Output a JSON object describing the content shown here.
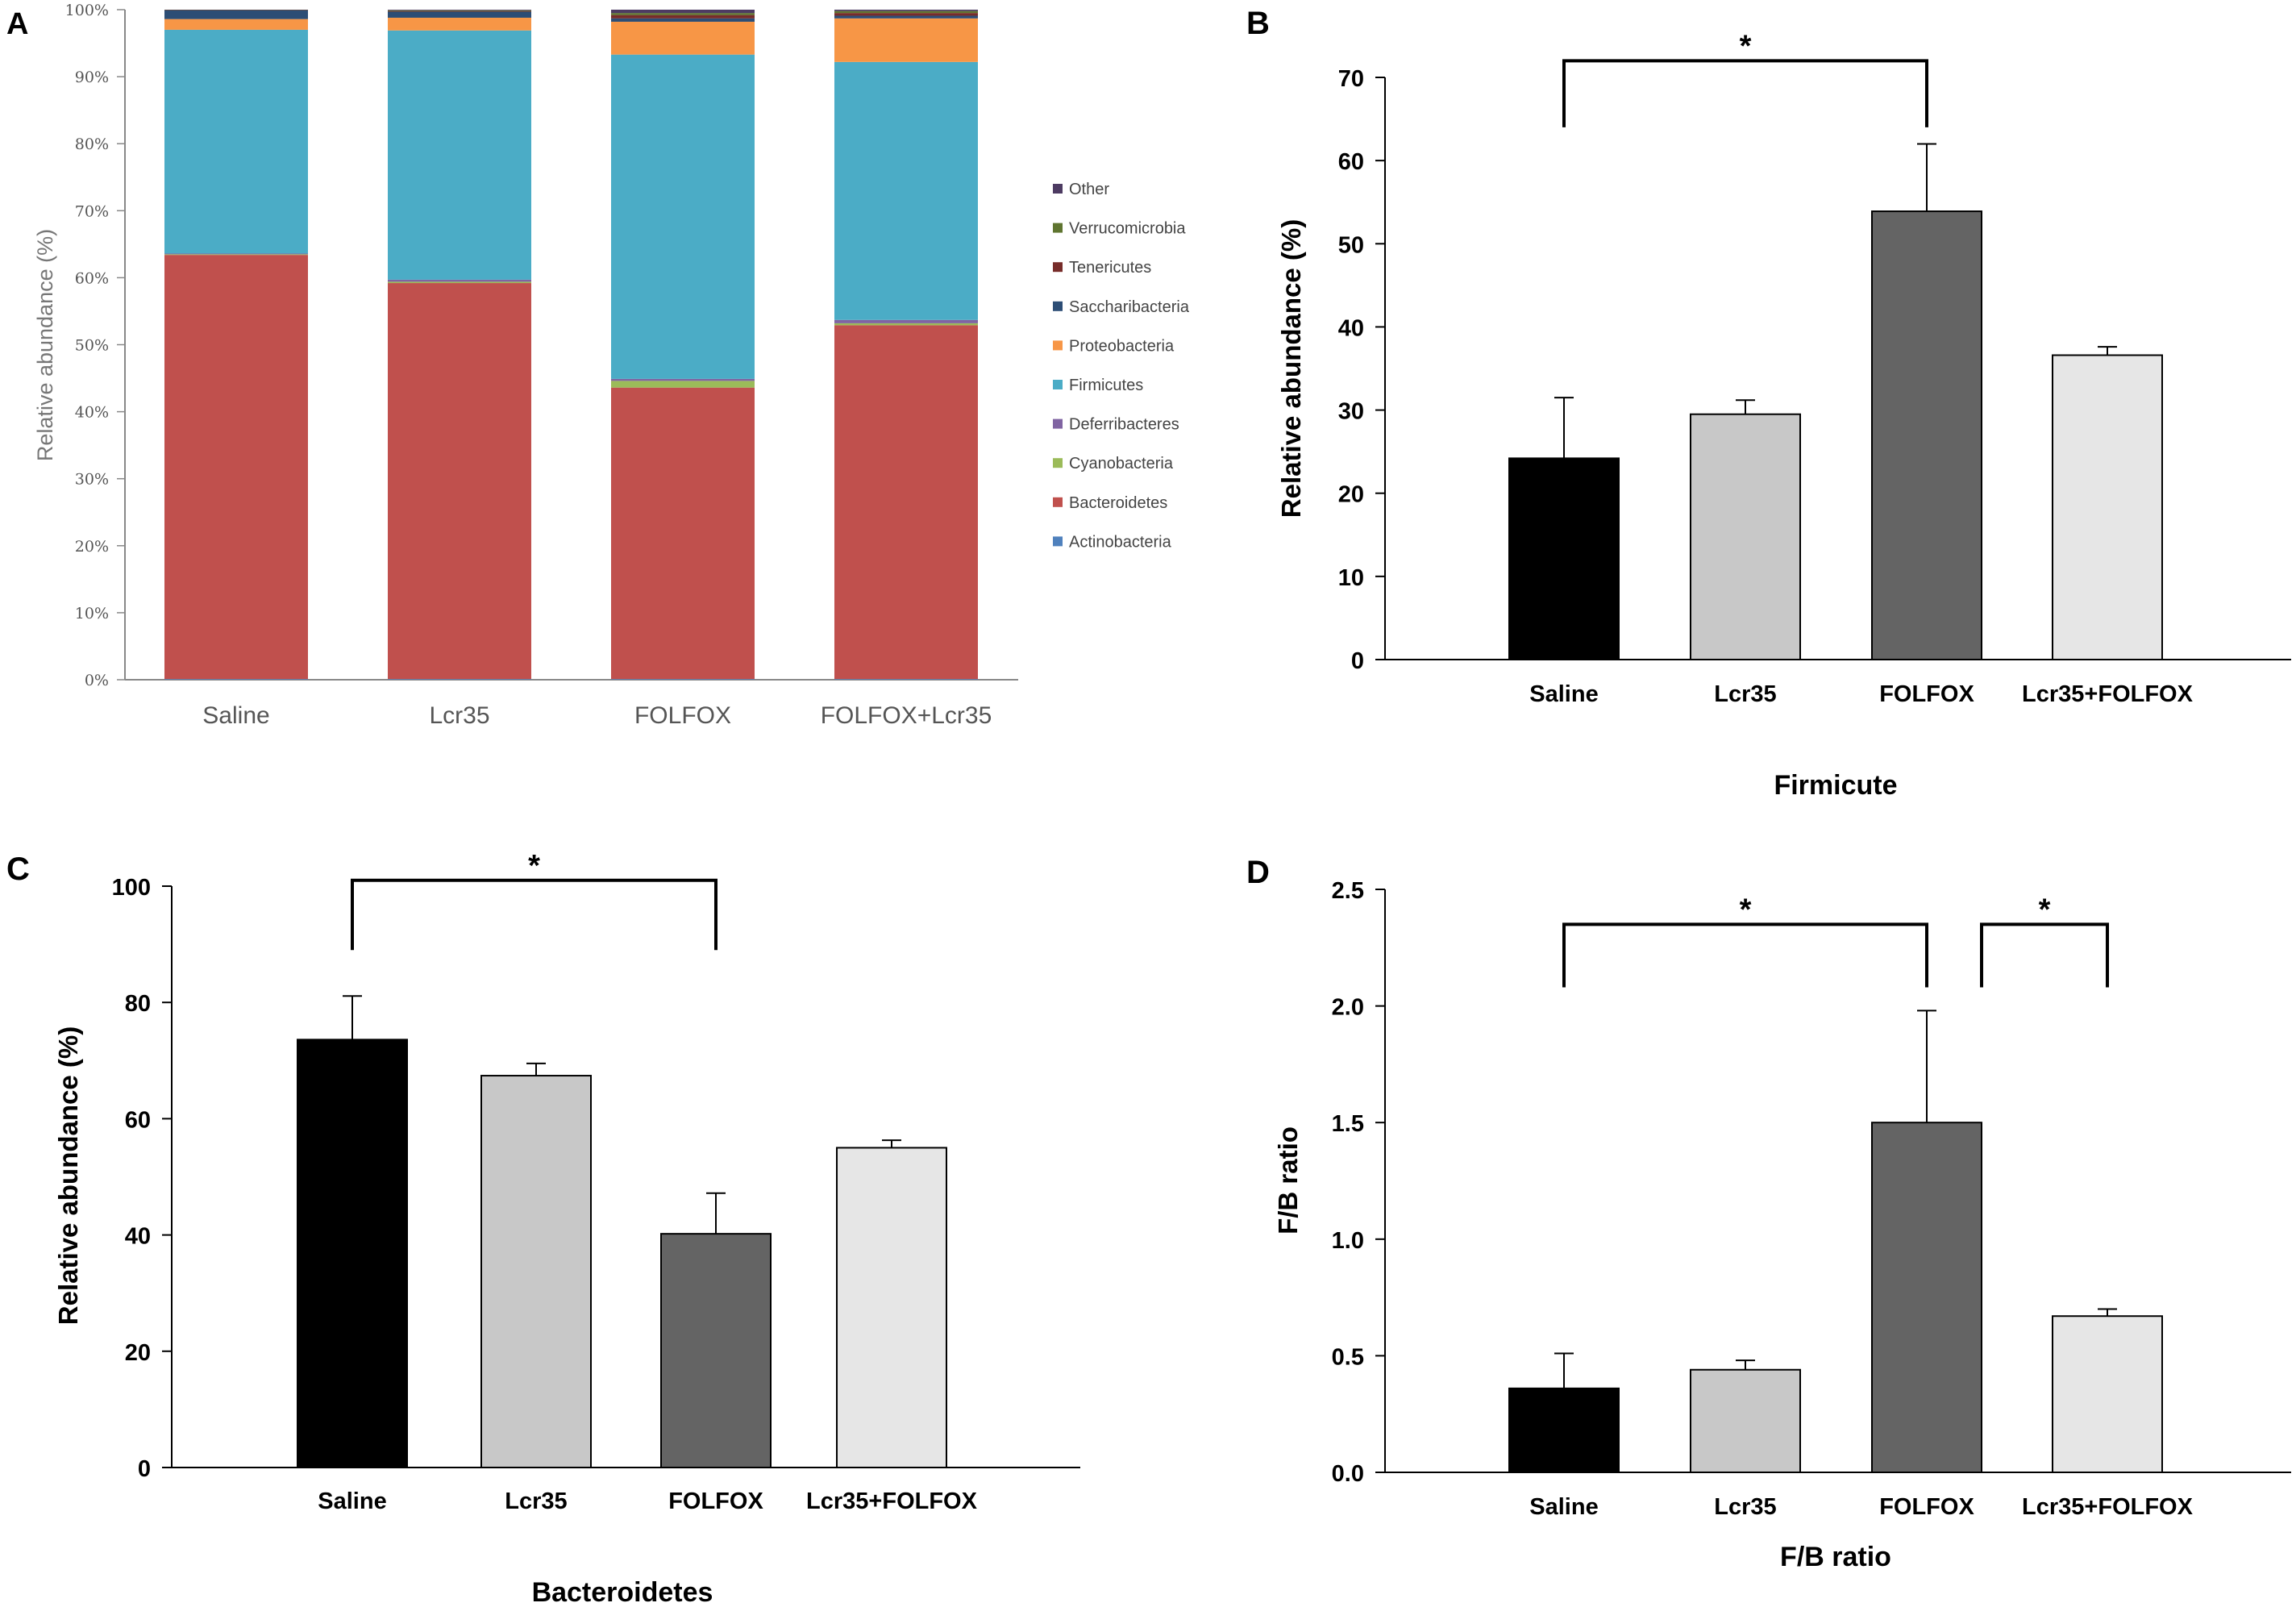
{
  "chart_data": [
    {
      "panel": "A",
      "type": "bar",
      "stacked": true,
      "categories": [
        "Saline",
        "Lcr35",
        "FOLFOX",
        "FOLFOX+Lcr35"
      ],
      "ylabel": "Relative abundance (%)",
      "ylim": [
        0,
        100
      ],
      "ytick_labels": [
        "0%",
        "10%",
        "20%",
        "30%",
        "40%",
        "50%",
        "60%",
        "70%",
        "80%",
        "90%",
        "100%"
      ],
      "yticks": [
        0,
        10,
        20,
        30,
        40,
        50,
        60,
        70,
        80,
        90,
        100
      ],
      "legend_position": "right",
      "series": [
        {
          "name": "Actinobacteria",
          "color": "#4f81bd",
          "values": [
            0.1,
            0.1,
            0.1,
            0.1
          ]
        },
        {
          "name": "Bacteroidetes",
          "color": "#c0504d",
          "values": [
            63.3,
            59.1,
            43.5,
            52.8
          ]
        },
        {
          "name": "Cyanobacteria",
          "color": "#9bbb59",
          "values": [
            0.1,
            0.2,
            1.0,
            0.3
          ]
        },
        {
          "name": "Deferribacteres",
          "color": "#8064a2",
          "values": [
            0.1,
            0.3,
            0.3,
            0.5
          ]
        },
        {
          "name": "Firmicutes",
          "color": "#4bacc6",
          "values": [
            33.4,
            37.2,
            48.4,
            38.5
          ]
        },
        {
          "name": "Proteobacteria",
          "color": "#f79646",
          "values": [
            1.6,
            1.9,
            4.9,
            6.5
          ]
        },
        {
          "name": "Saccharibacteria",
          "color": "#2c4d75",
          "values": [
            1.3,
            0.9,
            0.5,
            0.4
          ]
        },
        {
          "name": "Tenericutes",
          "color": "#772c2a",
          "values": [
            0.05,
            0.1,
            0.5,
            0.4
          ]
        },
        {
          "name": "Verrucomicrobia",
          "color": "#5f7530",
          "values": [
            0.02,
            0.1,
            0.3,
            0.3
          ]
        },
        {
          "name": "Other",
          "color": "#4d3b62",
          "values": [
            0.03,
            0.1,
            0.5,
            0.2
          ]
        }
      ]
    },
    {
      "panel": "B",
      "type": "bar",
      "title": "Firmicute",
      "ylabel": "Relative abundance (%)",
      "categories": [
        "Saline",
        "Lcr35",
        "FOLFOX",
        "Lcr35+FOLFOX"
      ],
      "values": [
        24.2,
        29.5,
        53.9,
        36.6
      ],
      "errors": [
        7.3,
        1.7,
        8.1,
        1.0
      ],
      "colors": [
        "#000000",
        "#c8c8c8",
        "#646464",
        "#e6e6e6"
      ],
      "ylim": [
        0,
        70
      ],
      "yticks": [
        0,
        10,
        20,
        30,
        40,
        50,
        60,
        70
      ],
      "ytick_labels": [
        "0",
        "10",
        "20",
        "30",
        "40",
        "50",
        "60",
        "70"
      ],
      "significance": [
        {
          "from": 0,
          "to": 2,
          "label": "*",
          "at": 64,
          "top": 72
        }
      ]
    },
    {
      "panel": "C",
      "type": "bar",
      "title": "Bacteroidetes",
      "ylabel": "Relative abundance (%)",
      "categories": [
        "Saline",
        "Lcr35",
        "FOLFOX",
        "Lcr35+FOLFOX"
      ],
      "values": [
        73.6,
        67.4,
        40.2,
        55.0
      ],
      "errors": [
        7.5,
        2.1,
        7.0,
        1.3
      ],
      "colors": [
        "#000000",
        "#c8c8c8",
        "#646464",
        "#e6e6e6"
      ],
      "ylim": [
        0,
        100
      ],
      "yticks": [
        0,
        20,
        40,
        60,
        80,
        100
      ],
      "ytick_labels": [
        "0",
        "20",
        "40",
        "60",
        "80",
        "100"
      ],
      "significance": [
        {
          "from": 0,
          "to": 2,
          "label": "*",
          "at": 89,
          "top": 101
        }
      ]
    },
    {
      "panel": "D",
      "type": "bar",
      "title": "F/B ratio",
      "ylabel": "F/B ratio",
      "categories": [
        "Saline",
        "Lcr35",
        "FOLFOX",
        "Lcr35+FOLFOX"
      ],
      "values": [
        0.36,
        0.44,
        1.5,
        0.67
      ],
      "errors": [
        0.15,
        0.04,
        0.48,
        0.03
      ],
      "colors": [
        "#000000",
        "#c8c8c8",
        "#646464",
        "#e6e6e6"
      ],
      "ylim": [
        0,
        2.5
      ],
      "yticks": [
        0,
        0.5,
        1.0,
        1.5,
        2.0,
        2.5
      ],
      "ytick_labels": [
        "0.0",
        "0.5",
        "1.0",
        "1.5",
        "2.0",
        "2.5"
      ],
      "significance": [
        {
          "from": 0,
          "to": 2,
          "label": "*",
          "at": 2.08,
          "top": 2.35
        },
        {
          "from": 2,
          "to": 3,
          "label": "*",
          "at": 2.08,
          "top": 2.35
        }
      ]
    }
  ],
  "panel_letters": [
    "A",
    "B",
    "C",
    "D"
  ]
}
